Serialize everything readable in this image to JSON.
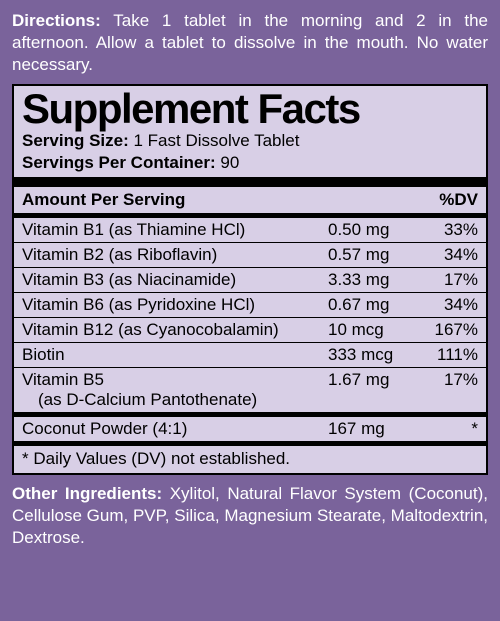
{
  "directions": {
    "label": "Directions:",
    "text": " Take 1 tablet in the morning and 2 in the afternoon. Allow a tablet to dissolve in the mouth. No water necessary."
  },
  "panel": {
    "title": "Supplement Facts",
    "serving_size_label": "Serving Size:",
    "serving_size_value": " 1 Fast Dissolve Tablet",
    "servings_label": "Servings Per Container:",
    "servings_value": " 90",
    "amount_header": "Amount Per Serving",
    "dv_header": "%DV",
    "rows": [
      {
        "name": "Vitamin B1 (as Thiamine HCl)",
        "amount": "0.50 mg",
        "dv": "33%"
      },
      {
        "name": "Vitamin B2 (as Riboflavin)",
        "amount": "0.57 mg",
        "dv": "34%"
      },
      {
        "name": "Vitamin B3 (as Niacinamide)",
        "amount": "3.33 mg",
        "dv": "17%"
      },
      {
        "name": "Vitamin B6 (as Pyridoxine HCl)",
        "amount": "0.67 mg",
        "dv": "34%"
      },
      {
        "name": "Vitamin B12 (as Cyanocobalamin)",
        "amount": "10 mcg",
        "dv": "167%"
      },
      {
        "name": "Biotin",
        "amount": "333 mcg",
        "dv": "111%"
      },
      {
        "name": "Vitamin B5",
        "sub": "(as D-Calcium Pantothenate)",
        "amount": "1.67 mg",
        "dv": "17%"
      }
    ],
    "rows2": [
      {
        "name": "Coconut Powder (4:1)",
        "amount": "167 mg",
        "dv": "*"
      }
    ],
    "footnote": "*  Daily Values (DV) not established."
  },
  "other": {
    "label": "Other Ingredients:",
    "text": " Xylitol, Natural Flavor System (Coconut), Cellulose Gum, PVP, Silica, Magnesium Stearate, Maltodextrin, Dextrose."
  },
  "colors": {
    "outer_bg": "#7a639b",
    "panel_bg": "#d8cfe6",
    "border": "#000000",
    "text_light": "#ffffff",
    "text_dark": "#000000"
  }
}
